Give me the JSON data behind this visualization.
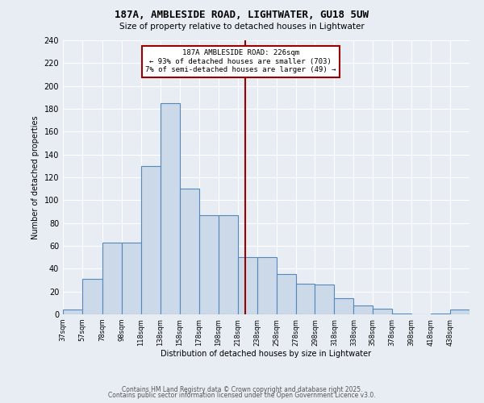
{
  "title": "187A, AMBLESIDE ROAD, LIGHTWATER, GU18 5UW",
  "subtitle": "Size of property relative to detached houses in Lightwater",
  "xlabel": "Distribution of detached houses by size in Lightwater",
  "ylabel": "Number of detached properties",
  "bar_color": "#ccd9e8",
  "bar_edge_color": "#5588bb",
  "background_color": "#e8edf4",
  "grid_color": "#ffffff",
  "bin_edges": [
    37,
    57,
    78,
    98,
    118,
    138,
    158,
    178,
    198,
    218,
    238,
    258,
    278,
    298,
    318,
    338,
    358,
    378,
    398,
    418,
    438,
    458
  ],
  "bin_labels": [
    "37sqm",
    "57sqm",
    "78sqm",
    "98sqm",
    "118sqm",
    "138sqm",
    "158sqm",
    "178sqm",
    "198sqm",
    "218sqm",
    "238sqm",
    "258sqm",
    "278sqm",
    "298sqm",
    "318sqm",
    "338sqm",
    "358sqm",
    "378sqm",
    "398sqm",
    "418sqm",
    "438sqm"
  ],
  "bar_heights": [
    4,
    31,
    63,
    63,
    130,
    185,
    110,
    87,
    87,
    50,
    50,
    35,
    27,
    26,
    14,
    8,
    5,
    1,
    0,
    1,
    4
  ],
  "vline_x": 226,
  "vline_color": "#990000",
  "annotation_text": "187A AMBLESIDE ROAD: 226sqm\n← 93% of detached houses are smaller (703)\n7% of semi-detached houses are larger (49) →",
  "annotation_box_color": "#ffffff",
  "annotation_box_edge_color": "#990000",
  "ylim": [
    0,
    240
  ],
  "yticks": [
    0,
    20,
    40,
    60,
    80,
    100,
    120,
    140,
    160,
    180,
    200,
    220,
    240
  ],
  "footer1": "Contains HM Land Registry data © Crown copyright and database right 2025.",
  "footer2": "Contains public sector information licensed under the Open Government Licence v3.0."
}
